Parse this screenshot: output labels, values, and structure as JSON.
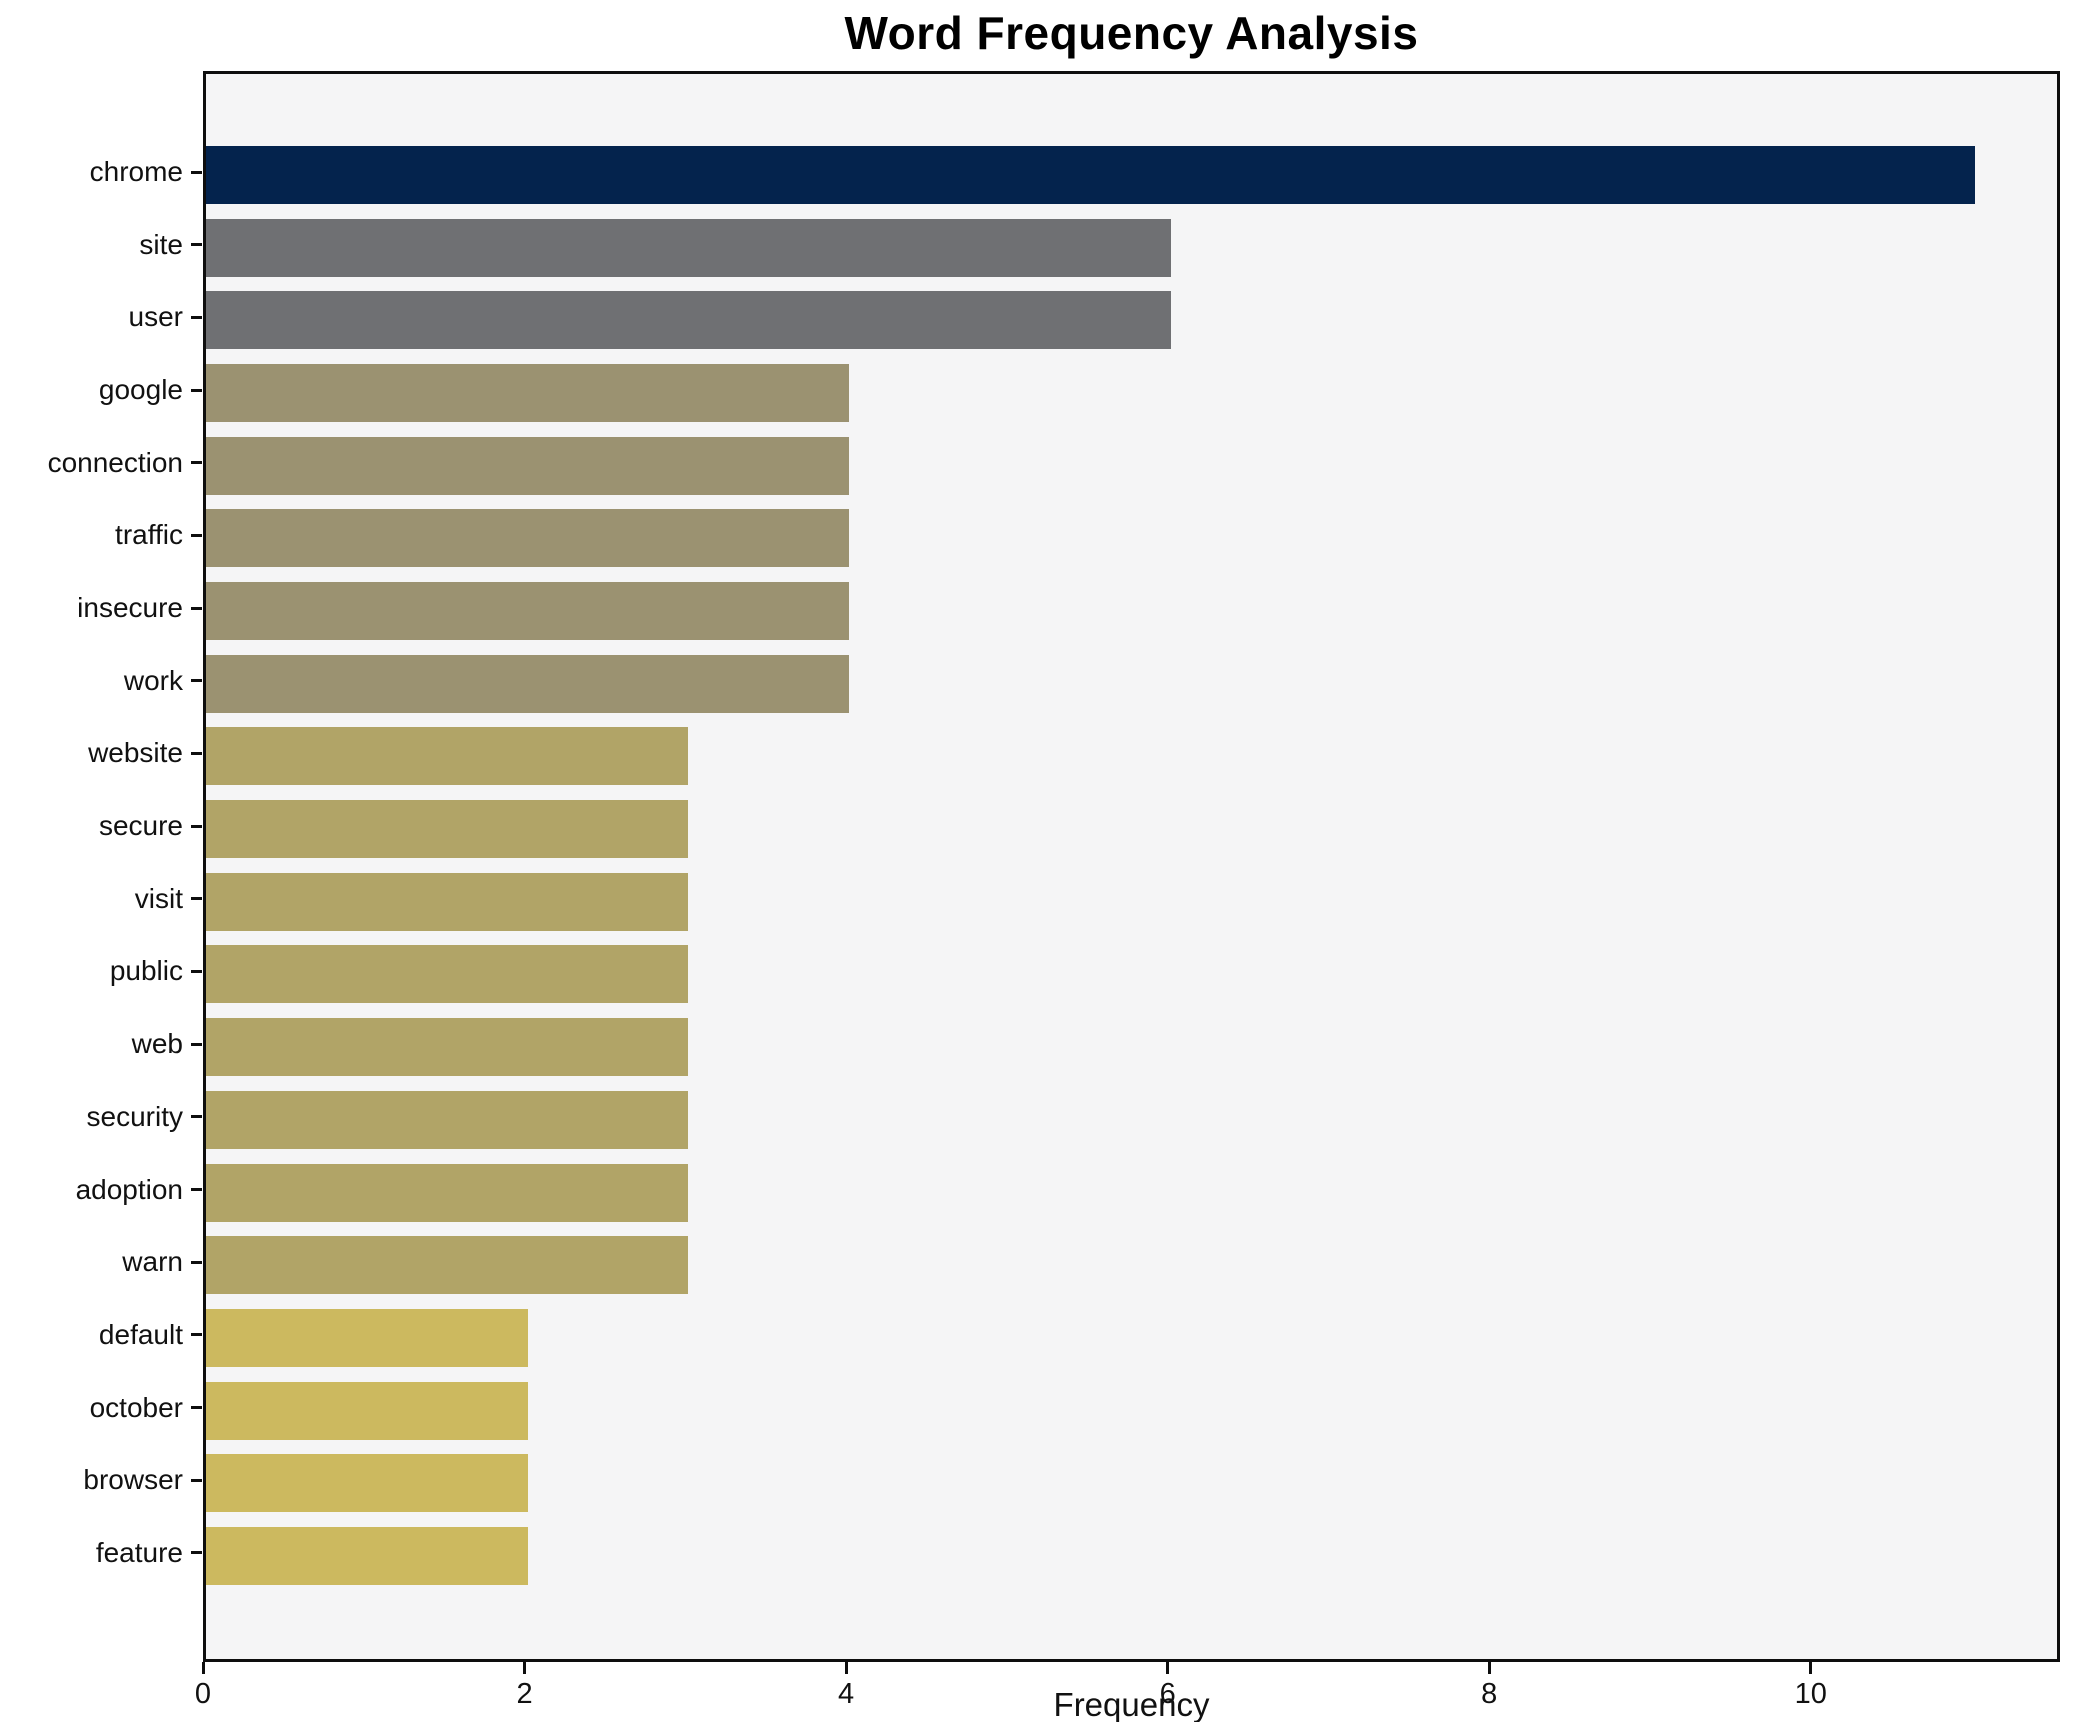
{
  "chart_data": {
    "type": "bar",
    "orientation": "horizontal",
    "title": "Word Frequency Analysis",
    "xlabel": "Frequency",
    "ylabel": "",
    "categories": [
      "chrome",
      "site",
      "user",
      "google",
      "connection",
      "traffic",
      "insecure",
      "work",
      "website",
      "secure",
      "visit",
      "public",
      "web",
      "security",
      "adoption",
      "warn",
      "default",
      "october",
      "browser",
      "feature"
    ],
    "values": [
      11,
      6,
      6,
      4,
      4,
      4,
      4,
      4,
      3,
      3,
      3,
      3,
      3,
      3,
      3,
      3,
      2,
      2,
      2,
      2
    ],
    "bar_colors": [
      "#04234d",
      "#6f7073",
      "#6f7073",
      "#9b9271",
      "#9b9271",
      "#9b9271",
      "#9b9271",
      "#9b9271",
      "#b1a467",
      "#b1a467",
      "#b1a467",
      "#b1a467",
      "#b1a467",
      "#b1a467",
      "#b1a467",
      "#b1a467",
      "#ccb95f",
      "#ccb95f",
      "#ccb95f",
      "#ccb95f"
    ],
    "xlim": [
      0,
      11.55
    ],
    "xticks": [
      0,
      2,
      4,
      6,
      8,
      10
    ],
    "grid": false,
    "legend": null,
    "plot_background": "#f5f5f6",
    "figure_background": "#ffffff",
    "axis_color": "#0e0e0e"
  }
}
